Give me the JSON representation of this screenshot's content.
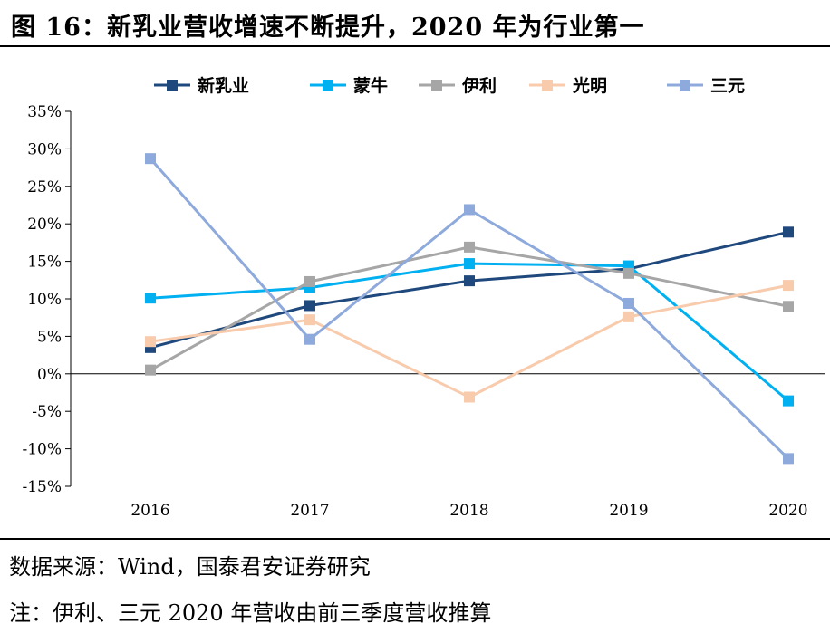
{
  "header": {
    "title": "图 16：新乳业营收增速不断提升，2020 年为行业第一"
  },
  "chart_data": {
    "type": "line",
    "x": [
      "2016",
      "2017",
      "2018",
      "2019",
      "2020"
    ],
    "ylim": [
      -15,
      35
    ],
    "yticks": [
      -15,
      -10,
      -5,
      0,
      5,
      10,
      15,
      20,
      25,
      30,
      35
    ],
    "ytick_labels": [
      "-15%",
      "-10%",
      "-5%",
      "0%",
      "5%",
      "10%",
      "15%",
      "20%",
      "25%",
      "30%",
      "35%"
    ],
    "legend_position": "top",
    "grid": false,
    "series": [
      {
        "name": "新乳业",
        "color": "#1f497d",
        "values": [
          3.5,
          9.1,
          12.4,
          14.0,
          18.9
        ]
      },
      {
        "name": "蒙牛",
        "color": "#00b0f0",
        "values": [
          10.1,
          11.5,
          14.7,
          14.4,
          -3.6
        ]
      },
      {
        "name": "伊利",
        "color": "#a6a6a6",
        "values": [
          0.5,
          12.3,
          16.9,
          13.4,
          9.0
        ]
      },
      {
        "name": "光明",
        "color": "#f8cbad",
        "values": [
          4.3,
          7.2,
          -3.1,
          7.6,
          11.8
        ]
      },
      {
        "name": "三元",
        "color": "#8ea9db",
        "values": [
          28.7,
          4.6,
          21.9,
          9.4,
          -11.3
        ]
      }
    ]
  },
  "footer": {
    "source": "数据来源：Wind，国泰君安证券研究",
    "note": "注：伊利、三元 2020 年营收由前三季度营收推算"
  }
}
